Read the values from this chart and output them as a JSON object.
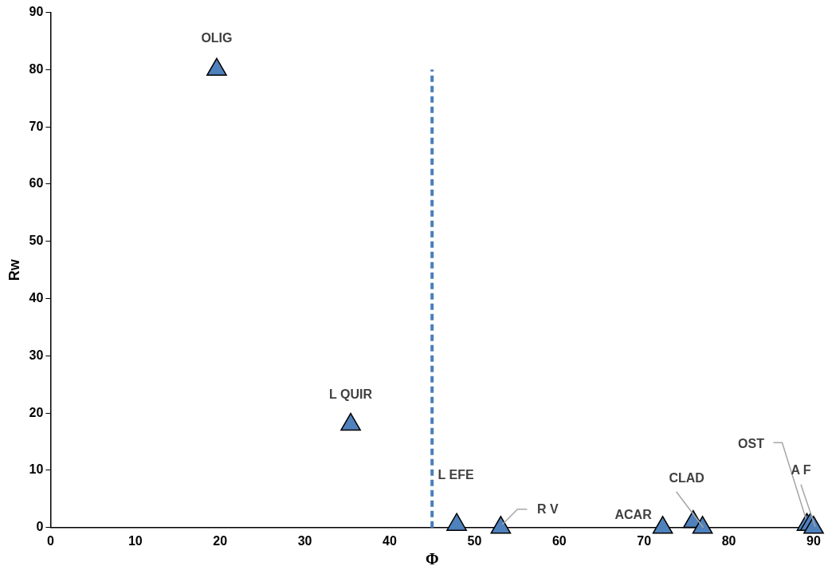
{
  "chart_data": {
    "type": "scatter",
    "xlabel": "Φ",
    "ylabel": "Rw",
    "series": [
      {
        "color": "#4f81bd",
        "x": [
          19.6,
          35.4,
          47.9,
          53.1,
          72.2,
          75.8,
          76.9,
          89.2,
          89.6,
          90
        ],
        "values": [
          80,
          18,
          0.5,
          0,
          0,
          1,
          0,
          0.5,
          0.5,
          0
        ]
      }
    ],
    "marker": "triangle",
    "grid": false,
    "legend": false,
    "xlim": [
      0,
      90
    ],
    "xticks": [
      0,
      10,
      20,
      30,
      40,
      50,
      60,
      70,
      80,
      90
    ],
    "ylim": [
      0,
      90
    ],
    "yticks": [
      0,
      10,
      20,
      30,
      40,
      50,
      60,
      70,
      80,
      90
    ],
    "ref_lines": [
      {
        "axis": "x",
        "value": 45,
        "color": "#4a7ebb",
        "line_style": "dashed"
      }
    ],
    "annotations": [
      {
        "text": "OLIG",
        "x": 19.6,
        "y": 80
      },
      {
        "text": "L QUIR",
        "x": 35.4,
        "y": 18
      },
      "L EFE",
      {
        "text": "R V",
        "x": 53.1,
        "y": 0
      },
      {
        "text": "ACAR",
        "x": 72.2,
        "y": 0
      },
      {
        "text": "CLAD",
        "x": 76.9,
        "y": 0
      },
      {
        "text": "OST",
        "x": 89.2,
        "y": 0.5
      },
      {
        "text": "A F",
        "x": 90,
        "y": 0
      }
    ]
  }
}
